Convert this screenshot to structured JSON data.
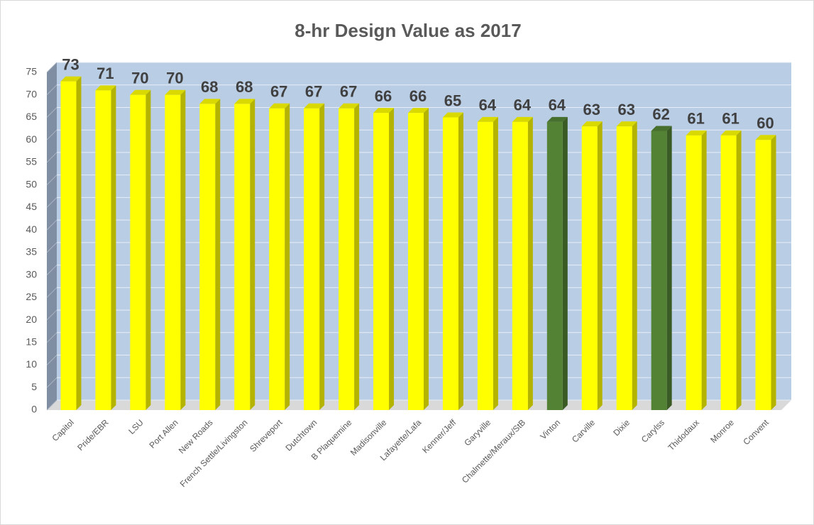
{
  "chart_data": {
    "type": "bar3d",
    "title": "8-hr Design Value as 2017",
    "categories": [
      "Capitol",
      "Pride/EBR",
      "LSU",
      "Port Allen",
      "New Roads",
      "French Settle/Livingston",
      "Shreveport",
      "Dutchtown",
      "B Plaquemine",
      "Madisonville",
      "Lafayette/Lafa",
      "Kenner/Jeff",
      "Garyville",
      "Chalmette/Meraux/StB",
      "Vinton",
      "Carville",
      "Dixie",
      "Carylss",
      "Thidodaux",
      "Monroe",
      "Convent"
    ],
    "values": [
      73,
      71,
      70,
      70,
      68,
      68,
      67,
      67,
      67,
      66,
      66,
      65,
      64,
      64,
      64,
      63,
      63,
      62,
      61,
      61,
      60
    ],
    "colors": [
      "#ffff00",
      "#ffff00",
      "#ffff00",
      "#ffff00",
      "#ffff00",
      "#ffff00",
      "#ffff00",
      "#ffff00",
      "#ffff00",
      "#ffff00",
      "#ffff00",
      "#ffff00",
      "#ffff00",
      "#ffff00",
      "#548235",
      "#ffff00",
      "#ffff00",
      "#548235",
      "#ffff00",
      "#ffff00",
      "#ffff00"
    ],
    "ylim": [
      0,
      75
    ],
    "yticks": [
      0,
      5,
      10,
      15,
      20,
      25,
      30,
      35,
      40,
      45,
      50,
      55,
      60,
      65,
      70,
      75
    ],
    "grid": true
  }
}
